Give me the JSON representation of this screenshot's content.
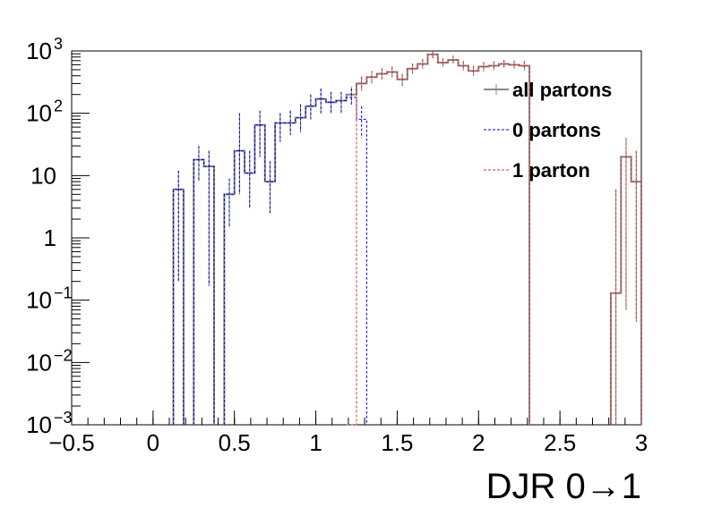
{
  "chart_data": {
    "type": "step-histogram",
    "xlabel": "DJR 0→1",
    "ylabel": "",
    "title": "",
    "xlim": [
      -0.5,
      3.0
    ],
    "ylim": [
      0.001,
      1000
    ],
    "y_scale": "log",
    "x_ticks": [
      {
        "value": -0.5,
        "label": "−0.5"
      },
      {
        "value": 0,
        "label": "0"
      },
      {
        "value": 0.5,
        "label": "0.5"
      },
      {
        "value": 1,
        "label": "1"
      },
      {
        "value": 1.5,
        "label": "1.5"
      },
      {
        "value": 2,
        "label": "2"
      },
      {
        "value": 2.5,
        "label": "2.5"
      },
      {
        "value": 3,
        "label": "3"
      }
    ],
    "y_ticks": [
      {
        "value": 0.001,
        "base": "10",
        "exp": "−3"
      },
      {
        "value": 0.01,
        "base": "10",
        "exp": "−2"
      },
      {
        "value": 0.1,
        "base": "10",
        "exp": "−1"
      },
      {
        "value": 1,
        "base": "1",
        "exp": ""
      },
      {
        "value": 10,
        "base": "10",
        "exp": ""
      },
      {
        "value": 100,
        "base": "10",
        "exp": "2"
      },
      {
        "value": 1000,
        "base": "10",
        "exp": "3"
      }
    ],
    "bin_width": 0.0625,
    "legend_position": "top-right",
    "series": [
      {
        "name": "all partons",
        "color": "#888888",
        "style": "solid",
        "points": [
          [
            0.15625,
            6.0,
            12.0,
            0.2
          ],
          [
            0.28125,
            18.0,
            30.0,
            8.0
          ],
          [
            0.34375,
            14.0,
            25.0,
            0.17
          ],
          [
            0.46875,
            5.0,
            9.0,
            1.5
          ],
          [
            0.53125,
            25.0,
            100.0,
            5.0
          ],
          [
            0.59375,
            11.0,
            25.0,
            3.0
          ],
          [
            0.65625,
            65.0,
            110.0,
            20.0
          ],
          [
            0.71875,
            8.0,
            17.0,
            2.5
          ],
          [
            0.78125,
            70.0,
            100.0,
            35.0
          ],
          [
            0.84375,
            70.0,
            110.0,
            45.0
          ],
          [
            0.90625,
            85.0,
            140.0,
            50.0
          ],
          [
            0.96875,
            130.0,
            200.0,
            80.0
          ],
          [
            1.03125,
            170.0,
            250.0,
            100.0
          ],
          [
            1.09375,
            150.0,
            220.0,
            100.0
          ],
          [
            1.15625,
            160.0,
            220.0,
            100.0
          ],
          [
            1.21875,
            200.0,
            270.0,
            150.0
          ],
          [
            1.28125,
            300.0,
            390.0,
            230.0
          ],
          [
            1.34375,
            380.0,
            480.0,
            300.0
          ],
          [
            1.40625,
            430.0,
            530.0,
            350.0
          ],
          [
            1.46875,
            460.0,
            560.0,
            380.0
          ],
          [
            1.53125,
            350.0,
            430.0,
            270.0
          ],
          [
            1.59375,
            520.0,
            630.0,
            430.0
          ],
          [
            1.65625,
            620.0,
            740.0,
            520.0
          ],
          [
            1.71875,
            880.0,
            1000.0,
            760.0
          ],
          [
            1.78125,
            650.0,
            760.0,
            560.0
          ],
          [
            1.84375,
            720.0,
            840.0,
            620.0
          ],
          [
            1.90625,
            580.0,
            690.0,
            490.0
          ],
          [
            1.96875,
            480.0,
            580.0,
            400.0
          ],
          [
            2.03125,
            560.0,
            670.0,
            470.0
          ],
          [
            2.09375,
            580.0,
            680.0,
            490.0
          ],
          [
            2.15625,
            620.0,
            720.0,
            530.0
          ],
          [
            2.21875,
            600.0,
            700.0,
            510.0
          ],
          [
            2.28125,
            580.0,
            690.0,
            490.0
          ],
          [
            2.84375,
            0.13,
            6.0,
            0.001
          ],
          [
            2.90625,
            20.0,
            40.0,
            0.07
          ],
          [
            2.96875,
            8.0,
            25.0,
            0.045
          ]
        ]
      },
      {
        "name": "0 partons",
        "color": "#0000cc",
        "style": "dashed",
        "points": [
          [
            0.15625,
            6.0,
            12.0,
            0.2
          ],
          [
            0.28125,
            18.0,
            30.0,
            8.0
          ],
          [
            0.34375,
            14.0,
            25.0,
            0.17
          ],
          [
            0.46875,
            5.0,
            9.0,
            1.5
          ],
          [
            0.53125,
            25.0,
            100.0,
            5.0
          ],
          [
            0.59375,
            11.0,
            25.0,
            3.0
          ],
          [
            0.65625,
            65.0,
            110.0,
            20.0
          ],
          [
            0.71875,
            8.0,
            17.0,
            2.5
          ],
          [
            0.78125,
            70.0,
            100.0,
            35.0
          ],
          [
            0.84375,
            70.0,
            110.0,
            45.0
          ],
          [
            0.90625,
            85.0,
            140.0,
            50.0
          ],
          [
            0.96875,
            130.0,
            200.0,
            80.0
          ],
          [
            1.03125,
            170.0,
            250.0,
            100.0
          ],
          [
            1.09375,
            150.0,
            220.0,
            100.0
          ],
          [
            1.15625,
            160.0,
            220.0,
            100.0
          ],
          [
            1.21875,
            180.0,
            250.0,
            130.0
          ],
          [
            1.28125,
            80.0,
            130.0,
            40.0
          ]
        ]
      },
      {
        "name": "1 parton",
        "color": "#cc3333",
        "style": "dashed",
        "points": [
          [
            1.21875,
            0.001,
            0.001,
            0.001
          ],
          [
            1.28125,
            300.0,
            390.0,
            230.0
          ],
          [
            1.34375,
            380.0,
            480.0,
            300.0
          ],
          [
            1.40625,
            430.0,
            530.0,
            350.0
          ],
          [
            1.46875,
            460.0,
            560.0,
            380.0
          ],
          [
            1.53125,
            350.0,
            430.0,
            270.0
          ],
          [
            1.59375,
            520.0,
            630.0,
            430.0
          ],
          [
            1.65625,
            620.0,
            740.0,
            520.0
          ],
          [
            1.71875,
            880.0,
            1000.0,
            760.0
          ],
          [
            1.78125,
            650.0,
            760.0,
            560.0
          ],
          [
            1.84375,
            720.0,
            840.0,
            620.0
          ],
          [
            1.90625,
            580.0,
            690.0,
            490.0
          ],
          [
            1.96875,
            480.0,
            580.0,
            400.0
          ],
          [
            2.03125,
            560.0,
            670.0,
            470.0
          ],
          [
            2.09375,
            580.0,
            680.0,
            490.0
          ],
          [
            2.15625,
            620.0,
            720.0,
            530.0
          ],
          [
            2.21875,
            600.0,
            700.0,
            510.0
          ],
          [
            2.28125,
            580.0,
            690.0,
            490.0
          ],
          [
            2.84375,
            0.13,
            6.0,
            0.001
          ],
          [
            2.90625,
            20.0,
            40.0,
            0.07
          ],
          [
            2.96875,
            8.0,
            25.0,
            0.045
          ]
        ]
      }
    ]
  }
}
